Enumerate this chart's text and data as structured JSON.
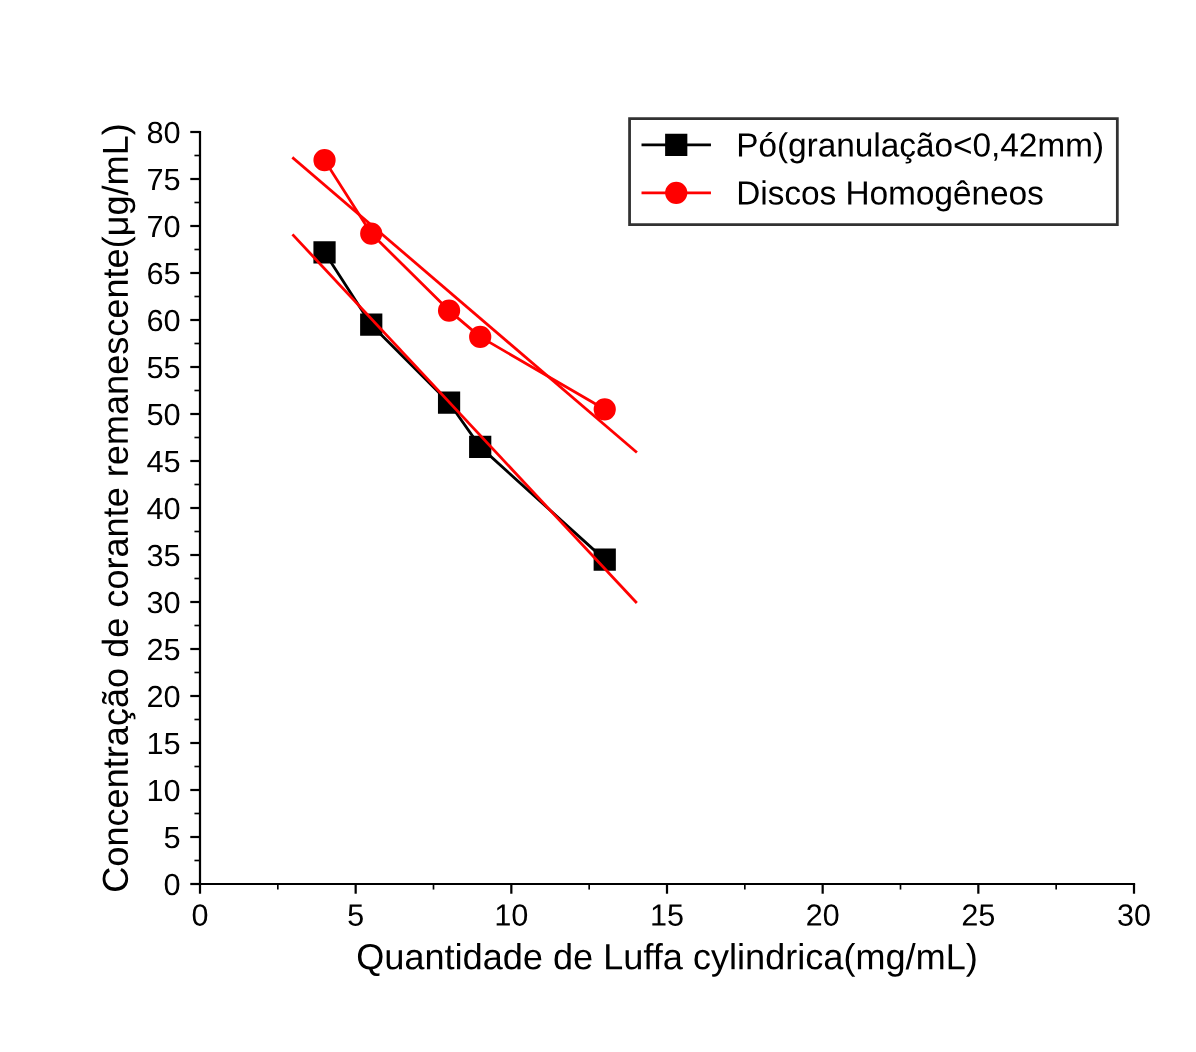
{
  "chart_data": {
    "type": "line",
    "xlabel": "Quantidade de Luffa cylindrica(mg/mL)",
    "ylabel": "Concentração de corante remanescente(μg/mL)",
    "xlim": [
      0,
      30
    ],
    "ylim": [
      0,
      80
    ],
    "xticks": [
      0,
      5,
      10,
      15,
      20,
      25,
      30
    ],
    "yticks": [
      0,
      5,
      10,
      15,
      20,
      25,
      30,
      35,
      40,
      45,
      50,
      55,
      60,
      65,
      70,
      75,
      80
    ],
    "grid": false,
    "legend": "top right",
    "series": [
      {
        "name": "Pó(granulação<0,42mm)",
        "color": "#000000",
        "marker": "square",
        "x": [
          4,
          5.5,
          8,
          9,
          13
        ],
        "values": [
          67.2,
          59.5,
          51.2,
          46.5,
          34.5
        ]
      },
      {
        "name": "Discos Homogêneos",
        "color": "#ff0000",
        "marker": "circle",
        "x": [
          4,
          5.5,
          8,
          9,
          13
        ],
        "values": [
          77,
          69.2,
          61,
          58.2,
          50.5
        ]
      },
      {
        "type": "line",
        "color": "#ff0000",
        "marker": "none",
        "x": [
          3,
          14
        ],
        "values": [
          69,
          30
        ]
      },
      {
        "type": "line",
        "color": "#ff0000",
        "marker": "none",
        "x": [
          3,
          14
        ],
        "values": [
          77.2,
          46
        ]
      }
    ]
  }
}
